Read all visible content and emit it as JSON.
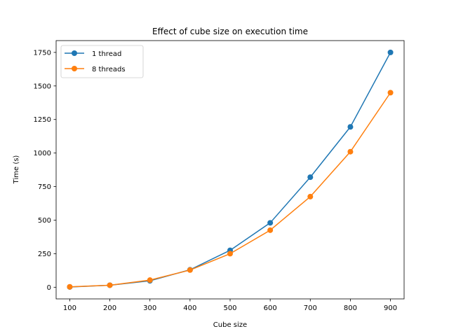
{
  "chart_data": {
    "type": "line",
    "title": "Effect of cube size on execution time",
    "xlabel": "Cube size",
    "ylabel": "Time (s)",
    "x": [
      100,
      200,
      300,
      400,
      500,
      600,
      700,
      800,
      900
    ],
    "xticks": [
      "100",
      "200",
      "300",
      "400",
      "500",
      "600",
      "700",
      "800",
      "900"
    ],
    "yticks": [
      "0",
      "250",
      "500",
      "750",
      "1000",
      "1250",
      "1500",
      "1750"
    ],
    "xlim": [
      66,
      934
    ],
    "ylim": [
      -87,
      1838
    ],
    "grid": false,
    "legend_position": "top-left",
    "series": [
      {
        "name": "1 thread",
        "color": "#1f77b4",
        "values": [
          2,
          15,
          48,
          130,
          275,
          480,
          820,
          1195,
          1750
        ]
      },
      {
        "name": "8 threads",
        "color": "#ff7f0e",
        "values": [
          3,
          15,
          53,
          128,
          250,
          425,
          675,
          1010,
          1450
        ]
      }
    ]
  }
}
